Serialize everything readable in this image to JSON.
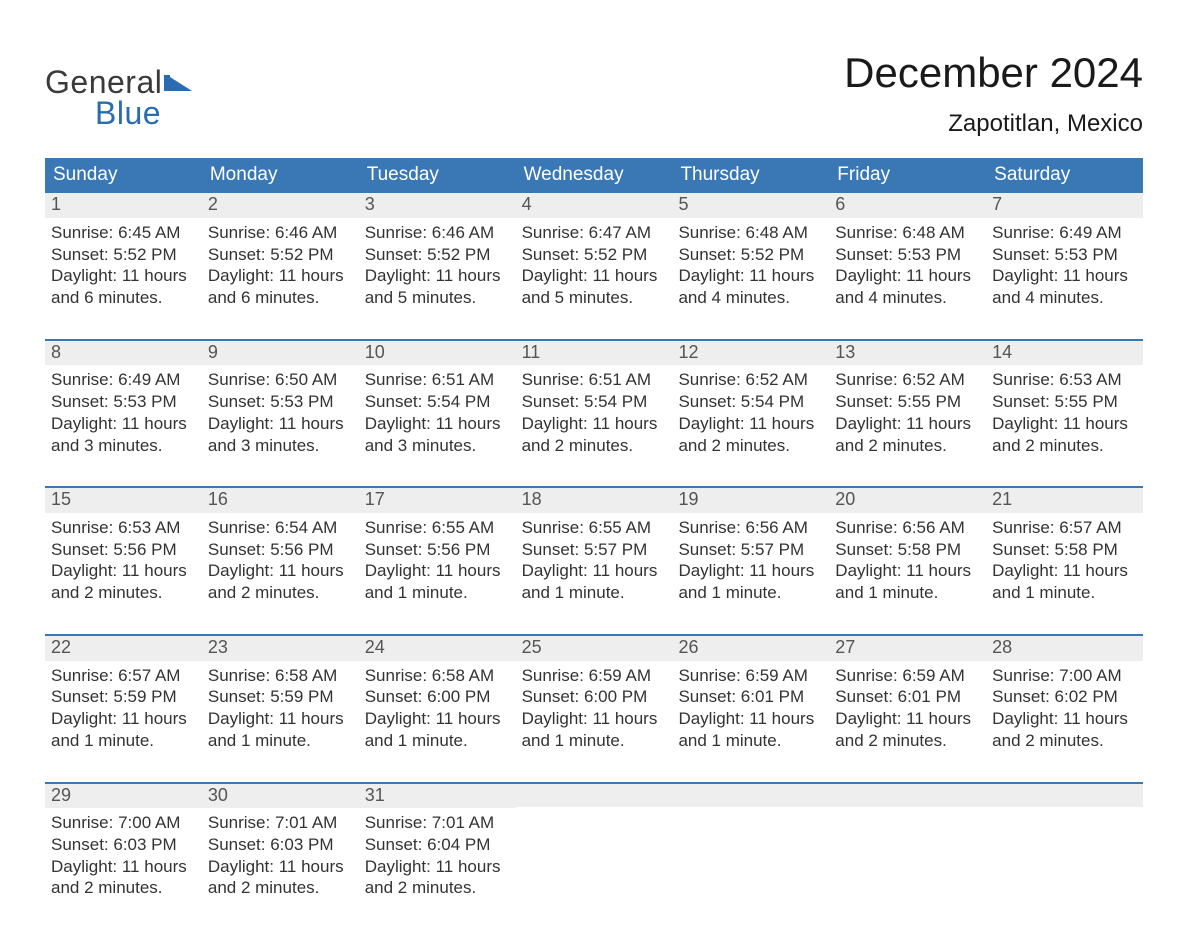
{
  "brand": {
    "word1": "General",
    "word2": "Blue",
    "text_color": "#3a3a3a",
    "accent_color": "#2a6cb0"
  },
  "title": "December 2024",
  "location": "Zapotitlan, Mexico",
  "colors": {
    "header_bg": "#3a78b5",
    "header_text": "#ffffff",
    "date_strip_bg": "#eeeeee",
    "date_strip_text": "#555555",
    "body_text": "#333333",
    "page_bg": "#ffffff",
    "week_border": "#3a78b5"
  },
  "fonts": {
    "title_size": 42,
    "location_size": 24,
    "header_size": 19,
    "date_size": 18,
    "body_size": 17
  },
  "day_names": [
    "Sunday",
    "Monday",
    "Tuesday",
    "Wednesday",
    "Thursday",
    "Friday",
    "Saturday"
  ],
  "weeks": [
    [
      {
        "date": "1",
        "sunrise": "Sunrise: 6:45 AM",
        "sunset": "Sunset: 5:52 PM",
        "daylight1": "Daylight: 11 hours",
        "daylight2": "and 6 minutes."
      },
      {
        "date": "2",
        "sunrise": "Sunrise: 6:46 AM",
        "sunset": "Sunset: 5:52 PM",
        "daylight1": "Daylight: 11 hours",
        "daylight2": "and 6 minutes."
      },
      {
        "date": "3",
        "sunrise": "Sunrise: 6:46 AM",
        "sunset": "Sunset: 5:52 PM",
        "daylight1": "Daylight: 11 hours",
        "daylight2": "and 5 minutes."
      },
      {
        "date": "4",
        "sunrise": "Sunrise: 6:47 AM",
        "sunset": "Sunset: 5:52 PM",
        "daylight1": "Daylight: 11 hours",
        "daylight2": "and 5 minutes."
      },
      {
        "date": "5",
        "sunrise": "Sunrise: 6:48 AM",
        "sunset": "Sunset: 5:52 PM",
        "daylight1": "Daylight: 11 hours",
        "daylight2": "and 4 minutes."
      },
      {
        "date": "6",
        "sunrise": "Sunrise: 6:48 AM",
        "sunset": "Sunset: 5:53 PM",
        "daylight1": "Daylight: 11 hours",
        "daylight2": "and 4 minutes."
      },
      {
        "date": "7",
        "sunrise": "Sunrise: 6:49 AM",
        "sunset": "Sunset: 5:53 PM",
        "daylight1": "Daylight: 11 hours",
        "daylight2": "and 4 minutes."
      }
    ],
    [
      {
        "date": "8",
        "sunrise": "Sunrise: 6:49 AM",
        "sunset": "Sunset: 5:53 PM",
        "daylight1": "Daylight: 11 hours",
        "daylight2": "and 3 minutes."
      },
      {
        "date": "9",
        "sunrise": "Sunrise: 6:50 AM",
        "sunset": "Sunset: 5:53 PM",
        "daylight1": "Daylight: 11 hours",
        "daylight2": "and 3 minutes."
      },
      {
        "date": "10",
        "sunrise": "Sunrise: 6:51 AM",
        "sunset": "Sunset: 5:54 PM",
        "daylight1": "Daylight: 11 hours",
        "daylight2": "and 3 minutes."
      },
      {
        "date": "11",
        "sunrise": "Sunrise: 6:51 AM",
        "sunset": "Sunset: 5:54 PM",
        "daylight1": "Daylight: 11 hours",
        "daylight2": "and 2 minutes."
      },
      {
        "date": "12",
        "sunrise": "Sunrise: 6:52 AM",
        "sunset": "Sunset: 5:54 PM",
        "daylight1": "Daylight: 11 hours",
        "daylight2": "and 2 minutes."
      },
      {
        "date": "13",
        "sunrise": "Sunrise: 6:52 AM",
        "sunset": "Sunset: 5:55 PM",
        "daylight1": "Daylight: 11 hours",
        "daylight2": "and 2 minutes."
      },
      {
        "date": "14",
        "sunrise": "Sunrise: 6:53 AM",
        "sunset": "Sunset: 5:55 PM",
        "daylight1": "Daylight: 11 hours",
        "daylight2": "and 2 minutes."
      }
    ],
    [
      {
        "date": "15",
        "sunrise": "Sunrise: 6:53 AM",
        "sunset": "Sunset: 5:56 PM",
        "daylight1": "Daylight: 11 hours",
        "daylight2": "and 2 minutes."
      },
      {
        "date": "16",
        "sunrise": "Sunrise: 6:54 AM",
        "sunset": "Sunset: 5:56 PM",
        "daylight1": "Daylight: 11 hours",
        "daylight2": "and 2 minutes."
      },
      {
        "date": "17",
        "sunrise": "Sunrise: 6:55 AM",
        "sunset": "Sunset: 5:56 PM",
        "daylight1": "Daylight: 11 hours",
        "daylight2": "and 1 minute."
      },
      {
        "date": "18",
        "sunrise": "Sunrise: 6:55 AM",
        "sunset": "Sunset: 5:57 PM",
        "daylight1": "Daylight: 11 hours",
        "daylight2": "and 1 minute."
      },
      {
        "date": "19",
        "sunrise": "Sunrise: 6:56 AM",
        "sunset": "Sunset: 5:57 PM",
        "daylight1": "Daylight: 11 hours",
        "daylight2": "and 1 minute."
      },
      {
        "date": "20",
        "sunrise": "Sunrise: 6:56 AM",
        "sunset": "Sunset: 5:58 PM",
        "daylight1": "Daylight: 11 hours",
        "daylight2": "and 1 minute."
      },
      {
        "date": "21",
        "sunrise": "Sunrise: 6:57 AM",
        "sunset": "Sunset: 5:58 PM",
        "daylight1": "Daylight: 11 hours",
        "daylight2": "and 1 minute."
      }
    ],
    [
      {
        "date": "22",
        "sunrise": "Sunrise: 6:57 AM",
        "sunset": "Sunset: 5:59 PM",
        "daylight1": "Daylight: 11 hours",
        "daylight2": "and 1 minute."
      },
      {
        "date": "23",
        "sunrise": "Sunrise: 6:58 AM",
        "sunset": "Sunset: 5:59 PM",
        "daylight1": "Daylight: 11 hours",
        "daylight2": "and 1 minute."
      },
      {
        "date": "24",
        "sunrise": "Sunrise: 6:58 AM",
        "sunset": "Sunset: 6:00 PM",
        "daylight1": "Daylight: 11 hours",
        "daylight2": "and 1 minute."
      },
      {
        "date": "25",
        "sunrise": "Sunrise: 6:59 AM",
        "sunset": "Sunset: 6:00 PM",
        "daylight1": "Daylight: 11 hours",
        "daylight2": "and 1 minute."
      },
      {
        "date": "26",
        "sunrise": "Sunrise: 6:59 AM",
        "sunset": "Sunset: 6:01 PM",
        "daylight1": "Daylight: 11 hours",
        "daylight2": "and 1 minute."
      },
      {
        "date": "27",
        "sunrise": "Sunrise: 6:59 AM",
        "sunset": "Sunset: 6:01 PM",
        "daylight1": "Daylight: 11 hours",
        "daylight2": "and 2 minutes."
      },
      {
        "date": "28",
        "sunrise": "Sunrise: 7:00 AM",
        "sunset": "Sunset: 6:02 PM",
        "daylight1": "Daylight: 11 hours",
        "daylight2": "and 2 minutes."
      }
    ],
    [
      {
        "date": "29",
        "sunrise": "Sunrise: 7:00 AM",
        "sunset": "Sunset: 6:03 PM",
        "daylight1": "Daylight: 11 hours",
        "daylight2": "and 2 minutes."
      },
      {
        "date": "30",
        "sunrise": "Sunrise: 7:01 AM",
        "sunset": "Sunset: 6:03 PM",
        "daylight1": "Daylight: 11 hours",
        "daylight2": "and 2 minutes."
      },
      {
        "date": "31",
        "sunrise": "Sunrise: 7:01 AM",
        "sunset": "Sunset: 6:04 PM",
        "daylight1": "Daylight: 11 hours",
        "daylight2": "and 2 minutes."
      },
      null,
      null,
      null,
      null
    ]
  ]
}
